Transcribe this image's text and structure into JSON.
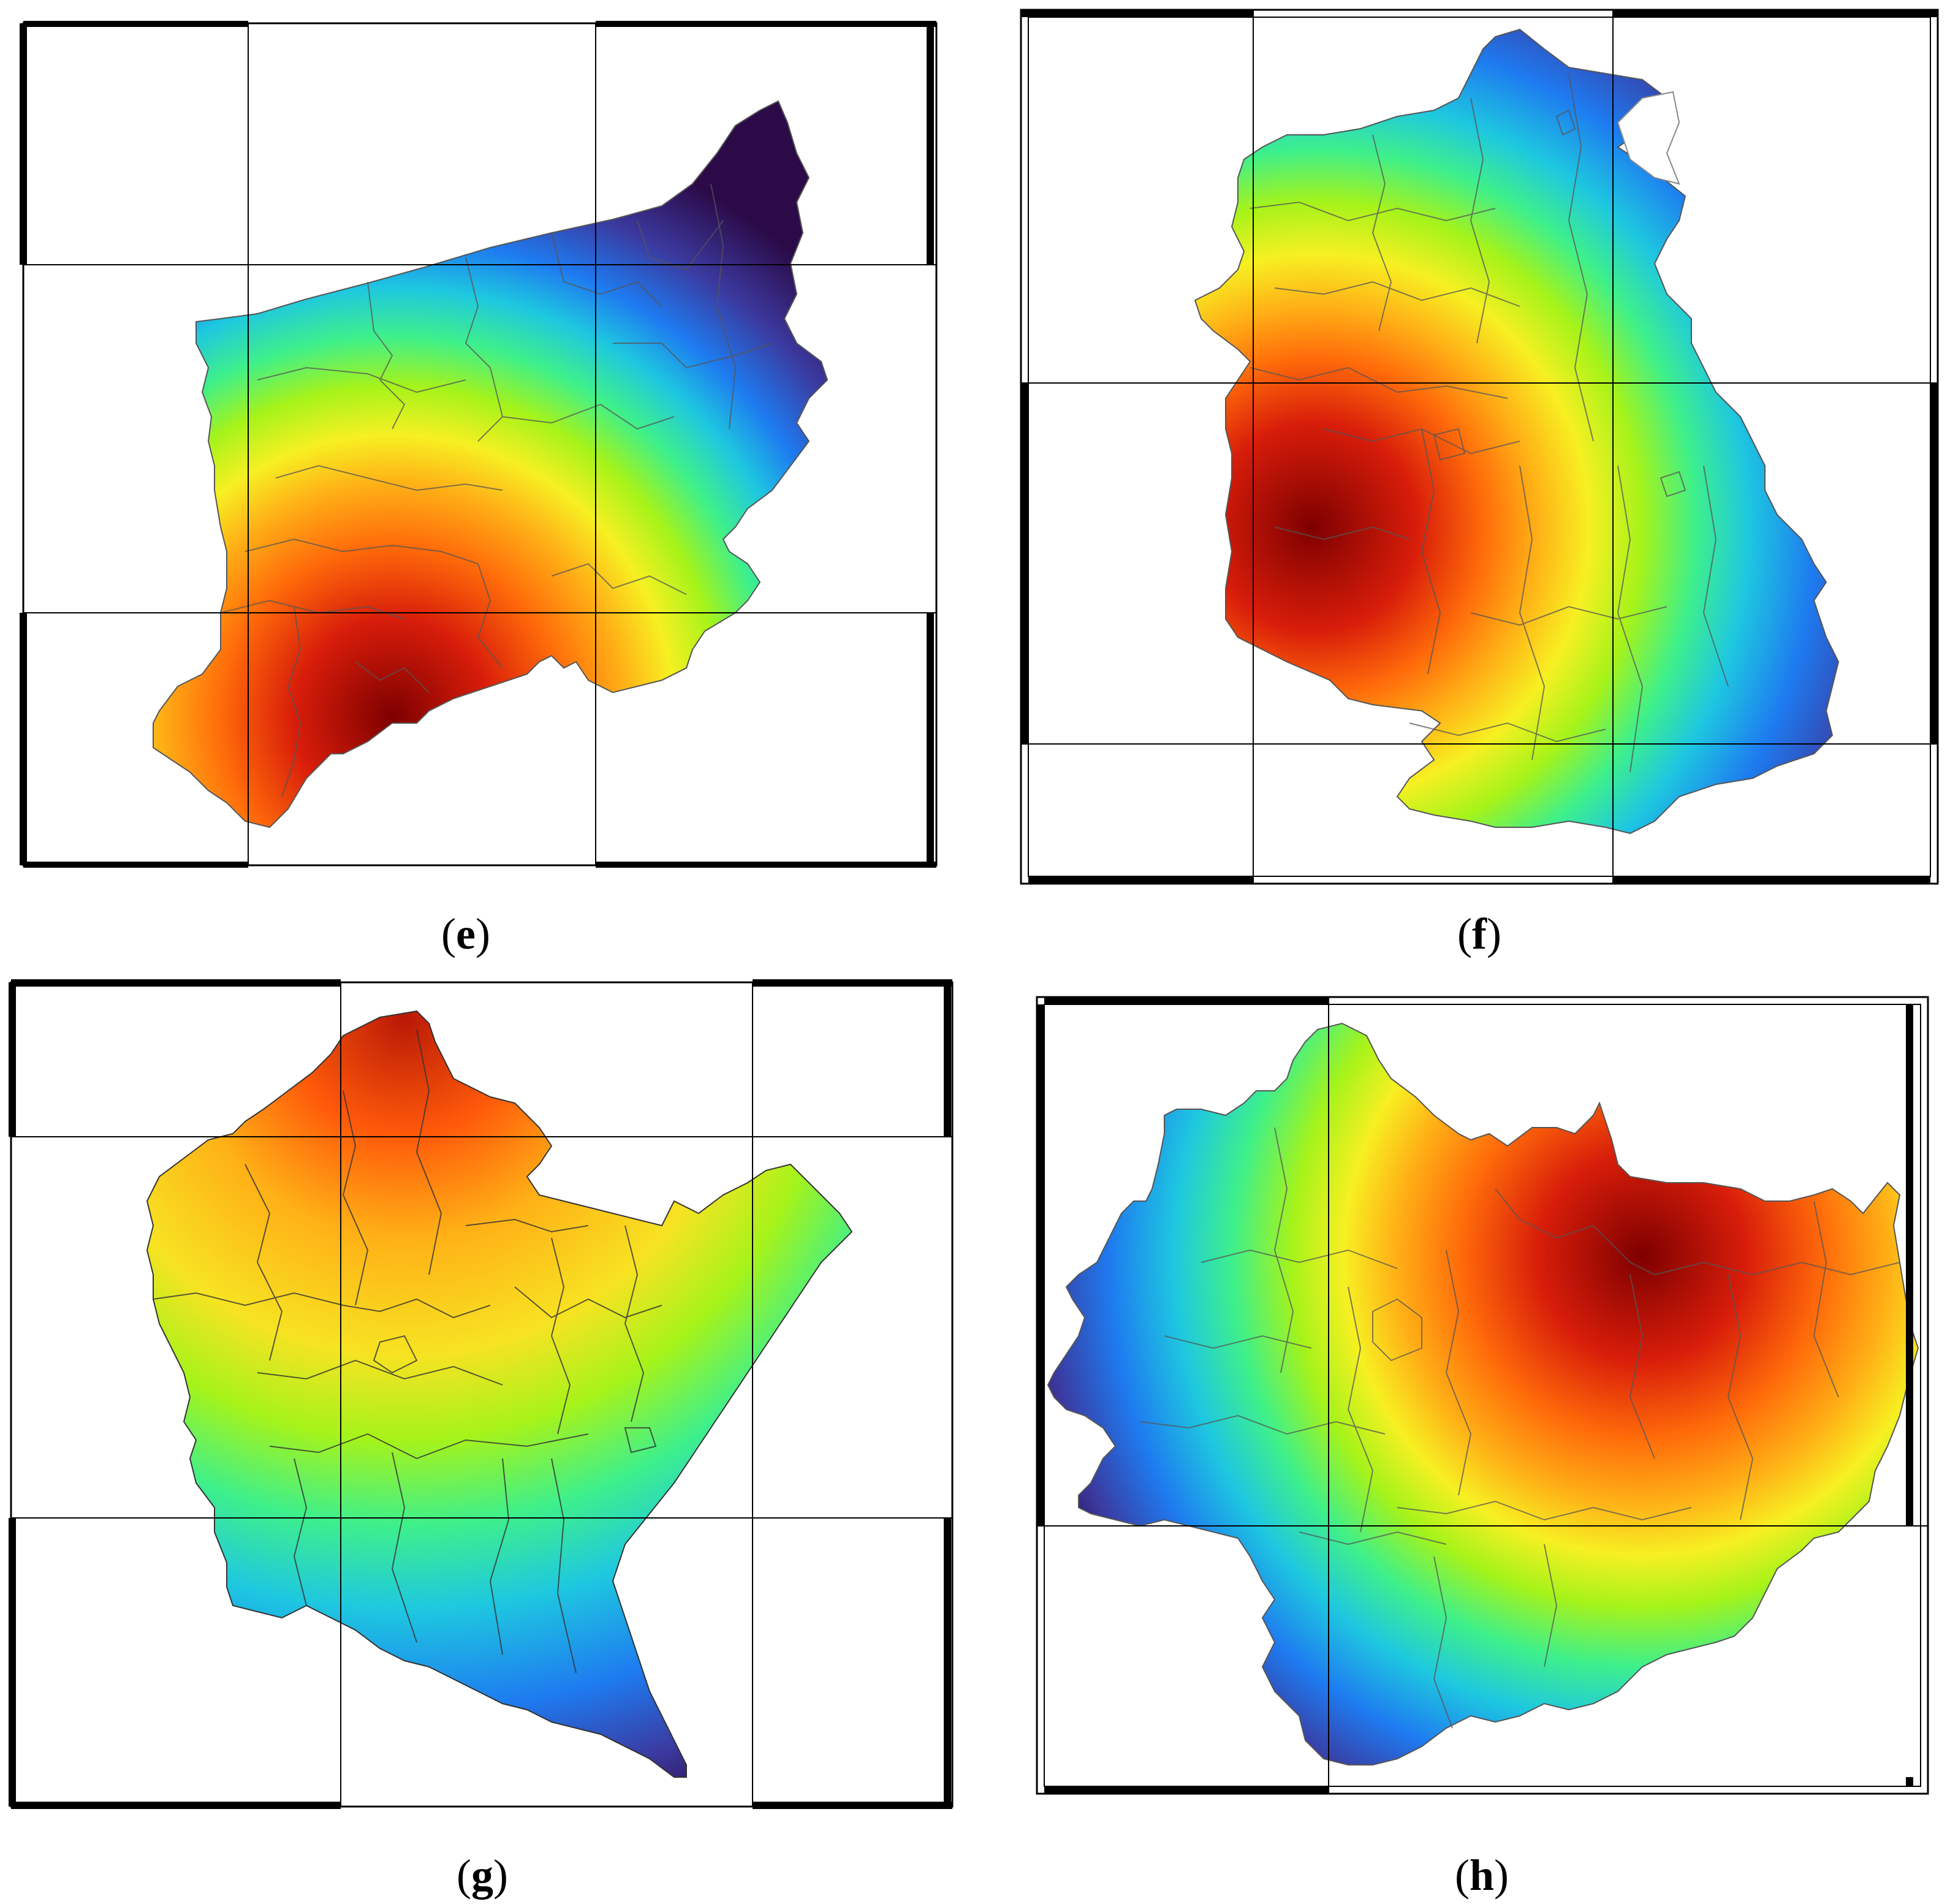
{
  "panels": {
    "e": {
      "label": "e"
    },
    "f": {
      "label": "f"
    },
    "g": {
      "label": "g"
    },
    "h": {
      "label": "h"
    }
  },
  "colormap": [
    "#2b0a47",
    "#3b3aa0",
    "#1e7bf0",
    "#1ec8e0",
    "#3ff08a",
    "#a6f31a",
    "#f7f022",
    "#ffb016",
    "#ff5a0a",
    "#d81d0a",
    "#7e0000"
  ],
  "grid_colors": {
    "frame": "#000000",
    "gridline": "#000000",
    "boundary": "#666666"
  }
}
